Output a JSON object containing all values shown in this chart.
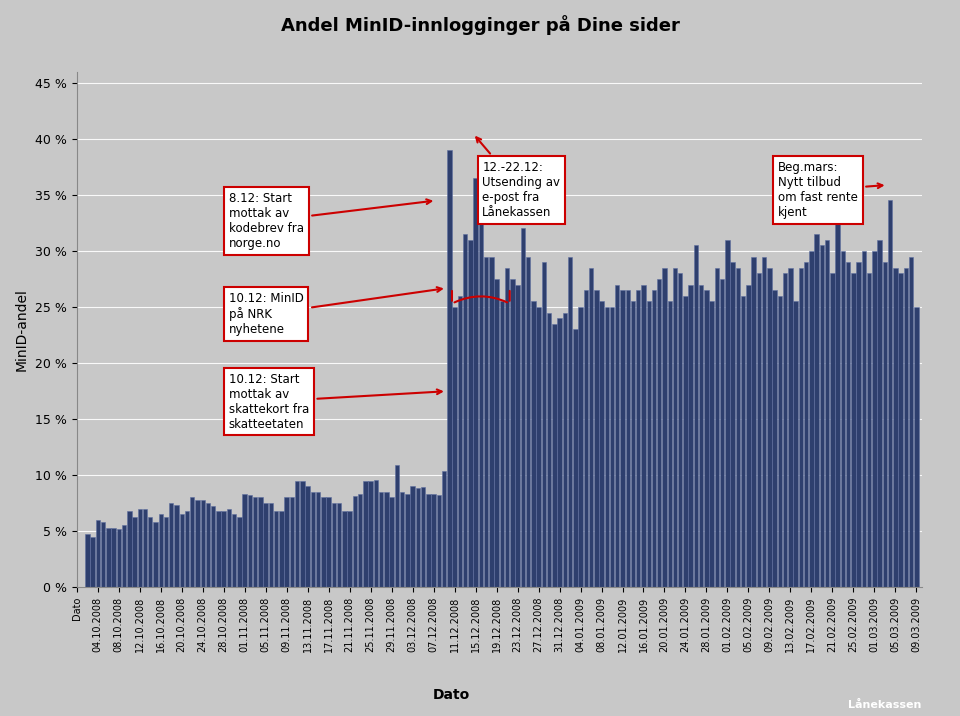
{
  "title": "Andel MinID-innlogginger på Dine sider",
  "xlabel": "Dato",
  "ylabel": "MinID-andel",
  "bar_color": "#2E3F6E",
  "bar_edge_color": "#6070A0",
  "plot_bg_color": "#C8C8C8",
  "fig_bg_color": "#C8C8C8",
  "title_bg_color": "#B8D8E8",
  "bottom_bg_color": "#B8D8E8",
  "ytick_labels": [
    "0 %",
    "5 %",
    "10 %",
    "15 %",
    "20 %",
    "25 %",
    "30 %",
    "35 %",
    "40 %",
    "45 %"
  ],
  "yticks": [
    0.0,
    0.05,
    0.1,
    0.15,
    0.2,
    0.25,
    0.3,
    0.35,
    0.4,
    0.45
  ],
  "bar_values_raw": [
    4.7,
    4.5,
    6.0,
    5.8,
    5.3,
    5.3,
    5.2,
    5.5,
    6.8,
    6.3,
    7.0,
    7.0,
    6.3,
    5.8,
    6.5,
    6.3,
    7.5,
    7.3,
    6.5,
    6.8,
    8.0,
    7.8,
    7.8,
    7.5,
    7.2,
    6.8,
    6.8,
    7.0,
    6.5,
    6.3,
    8.3,
    8.2,
    8.0,
    8.0,
    7.5,
    7.5,
    6.8,
    6.8,
    8.0,
    8.0,
    9.5,
    9.5,
    9.0,
    8.5,
    8.5,
    8.0,
    8.0,
    7.5,
    7.5,
    6.8,
    6.8,
    8.1,
    8.3,
    9.5,
    9.5,
    9.6,
    8.5,
    8.5,
    8.0,
    10.9,
    8.5,
    8.3,
    9.0,
    8.8,
    8.9,
    8.3,
    8.3,
    8.2,
    10.4,
    39.0,
    25.0,
    26.0,
    31.5,
    31.0,
    36.5,
    36.0,
    29.5,
    29.5,
    27.5,
    25.5,
    28.5,
    27.5,
    27.0,
    32.0,
    29.5,
    25.5,
    25.0,
    29.0,
    24.5,
    23.5,
    24.0,
    24.5,
    29.5,
    23.0,
    25.0,
    26.5,
    28.5,
    26.5,
    25.5,
    25.0,
    25.0,
    27.0,
    26.5,
    26.5,
    25.5,
    26.5,
    27.0,
    25.5,
    26.5,
    27.5,
    28.5,
    25.5,
    28.5,
    28.0,
    26.0,
    27.0,
    30.5,
    27.0,
    26.5,
    25.5,
    28.5,
    27.5,
    31.0,
    29.0,
    28.5,
    26.0,
    27.0,
    29.5,
    28.0,
    29.5,
    28.5,
    26.5,
    26.0,
    28.0,
    28.5,
    25.5,
    28.5,
    29.0,
    30.0,
    31.5,
    30.5,
    31.0,
    28.0,
    34.0,
    30.0,
    29.0,
    28.0,
    29.0,
    30.0,
    28.0,
    30.0,
    31.0,
    29.0,
    34.5,
    28.5,
    28.0,
    28.5,
    29.5,
    25.0
  ],
  "tick_labels": [
    "Dato",
    "04.10.2008",
    "08.10.2008",
    "12.10.2008",
    "16.10.2008",
    "20.10.2008",
    "24.10.2008",
    "28.10.2008",
    "01.11.2008",
    "05.11.2008",
    "09.11.2008",
    "13.11.2008",
    "17.11.2008",
    "21.11.2008",
    "25.11.2008",
    "29.11.2008",
    "03.12.2008",
    "07.12.2008",
    "11.12.2008",
    "15.12.2008",
    "19.12.2008",
    "23.12.2008",
    "27.12.2008",
    "31.12.2008",
    "04.01.2009",
    "08.01.2009",
    "12.01.2009",
    "16.01.2009",
    "20.01.2009",
    "24.01.2009",
    "28.01.2009",
    "01.02.2009",
    "05.02.2009",
    "09.02.2009",
    "13.02.2009",
    "17.02.2009",
    "21.02.2009",
    "25.02.2009",
    "01.03.2009",
    "05.03.2009",
    "09.03.2009"
  ]
}
